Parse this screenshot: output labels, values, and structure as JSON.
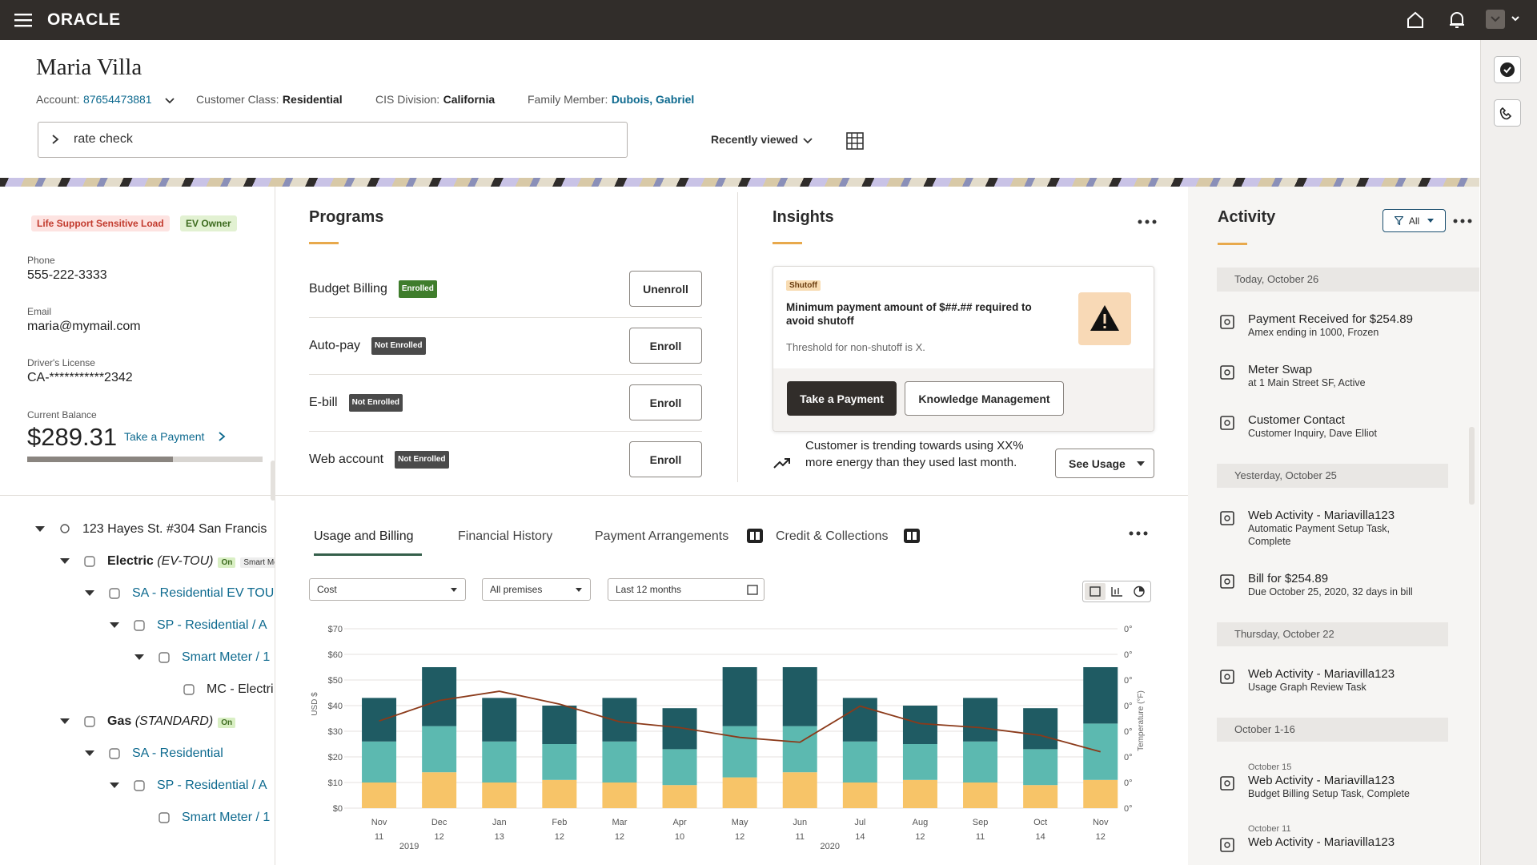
{
  "header": {
    "brand": "ORACLE"
  },
  "customer": {
    "name": "Maria Villa",
    "account_label": "Account:",
    "account": "87654473881",
    "class_label": "Customer Class:",
    "class": "Residential",
    "division_label": "CIS Division:",
    "division": "California",
    "family_label": "Family Member:",
    "family": "Dubois, Gabriel"
  },
  "search": {
    "query": "rate check",
    "recent": "Recently viewed"
  },
  "profile": {
    "badges": [
      "Life Support Sensitive Load",
      "EV Owner"
    ],
    "fields": [
      {
        "label": "Phone",
        "value": "555-222-3333"
      },
      {
        "label": "Email",
        "value": "maria@mymail.com"
      },
      {
        "label": "Driver's License",
        "value": "CA-***********2342"
      }
    ],
    "balance_label": "Current Balance",
    "balance": "$289.31",
    "pay_link": "Take a Payment"
  },
  "tree": {
    "label": "123 Hayes St. #304 San Francis",
    "children": [
      {
        "label": "Electric",
        "qualifier": "(EV-TOU)",
        "status": "On",
        "tag": "Smart Met",
        "children": [
          {
            "label": "SA - Residential EV TOU",
            "children": [
              {
                "label": "SP - Residential / A",
                "children": [
                  {
                    "label": "Smart Meter / 1",
                    "children": [
                      {
                        "label": "MC - Electri"
                      }
                    ]
                  }
                ]
              }
            ]
          }
        ]
      },
      {
        "label": "Gas",
        "qualifier": "(STANDARD)",
        "status": "On",
        "children": [
          {
            "label": "SA - Residential",
            "children": [
              {
                "label": "SP - Residential / A",
                "children": [
                  {
                    "label": "Smart Meter / 1"
                  }
                ]
              }
            ]
          }
        ]
      }
    ]
  },
  "programs": {
    "title": "Programs",
    "rows": [
      {
        "name": "Budget Billing",
        "status": "Enrolled",
        "action": "Unenroll"
      },
      {
        "name": "Auto-pay",
        "status": "Not Enrolled",
        "action": "Enroll"
      },
      {
        "name": "E-bill",
        "status": "Not Enrolled",
        "action": "Enroll"
      },
      {
        "name": "Web account",
        "status": "Not Enrolled",
        "action": "Enroll"
      }
    ]
  },
  "insights": {
    "title": "Insights",
    "tag": "Shutoff",
    "message": "Minimum payment amount of $##.## required to avoid shutoff",
    "note": "Threshold for non-shutoff is X.",
    "actions": [
      "Take a Payment",
      "Knowledge Management"
    ],
    "trend": "Customer is trending towards using XX% more energy than they used last month.",
    "trend_action": "See Usage"
  },
  "tabs": [
    "Usage and Billing",
    "Financial History",
    "Payment Arrangements",
    "Credit & Collections"
  ],
  "filters": [
    "Cost",
    "All premises",
    "Last 12 months"
  ],
  "chart_data": {
    "type": "bar",
    "stacked": true,
    "categories": [
      [
        "Nov",
        "11"
      ],
      [
        "Dec",
        "12"
      ],
      [
        "Jan",
        "13"
      ],
      [
        "Feb",
        "12"
      ],
      [
        "Mar",
        "12"
      ],
      [
        "Apr",
        "10"
      ],
      [
        "May",
        "12"
      ],
      [
        "Jun",
        "11"
      ],
      [
        "Jul",
        "14"
      ],
      [
        "Aug",
        "12"
      ],
      [
        "Sep",
        "11"
      ],
      [
        "Oct",
        "14"
      ],
      [
        "Nov",
        "12"
      ]
    ],
    "years": [
      "2019",
      "2020"
    ],
    "ylabel": "USD $",
    "y2label": "Temperature (°F)",
    "series": [
      {
        "color": "#f7c468",
        "values": [
          10,
          14,
          10,
          11,
          10,
          9,
          12,
          14,
          10,
          11,
          10,
          9,
          11
        ]
      },
      {
        "color": "#5cb9b0",
        "values": [
          16,
          18,
          16,
          14,
          16,
          14,
          20,
          18,
          16,
          14,
          16,
          14,
          22
        ]
      },
      {
        "color": "#1f5b63",
        "values": [
          17,
          23,
          17,
          15,
          17,
          16,
          23,
          23,
          17,
          15,
          17,
          16,
          22
        ]
      },
      {
        "type": "line",
        "axis": "y2",
        "color": "#8b3a1a",
        "values": [
          34,
          42,
          45.6,
          40.6,
          33.7,
          31.4,
          27.6,
          25.7,
          39.8,
          33,
          31.4,
          28.4,
          22
        ]
      }
    ],
    "ylim": [
      0,
      70
    ],
    "yticks": [
      {
        "value": 0,
        "label": "$0"
      },
      {
        "value": 10,
        "label": "$10"
      },
      {
        "value": 20,
        "label": "$20"
      },
      {
        "value": 30,
        "label": "$30"
      },
      {
        "value": 40,
        "label": "$40"
      },
      {
        "value": 50,
        "label": "$50"
      },
      {
        "value": 60,
        "label": "$60"
      },
      {
        "value": 70,
        "label": "$70"
      }
    ],
    "y2lim": [
      0,
      70
    ],
    "y2_labels": [
      "0°",
      "0°",
      "0°",
      "0°",
      "0°",
      "0°",
      "0°",
      "0°"
    ],
    "grid": true
  },
  "activity": {
    "title": "Activity",
    "filter": "All",
    "groups": [
      {
        "date": "Today, October 26",
        "items": [
          {
            "title": "Payment Received for $254.89",
            "detail": "Amex ending in 1000, Frozen"
          },
          {
            "title": "Meter Swap",
            "detail": "at 1 Main Street SF, Active"
          },
          {
            "title": "Customer Contact",
            "detail": "Customer Inquiry, Dave Elliot"
          }
        ]
      },
      {
        "date": "Yesterday, October 25",
        "items": [
          {
            "title": "Web Activity - Mariavilla123",
            "detail": "Automatic Payment Setup Task, Complete"
          },
          {
            "title": "Bill for $254.89",
            "detail": "Due October 25, 2020, 32 days in bill"
          }
        ]
      },
      {
        "date": "Thursday, October 22",
        "items": [
          {
            "title": "Web Activity - Mariavilla123",
            "detail": "Usage Graph Review Task"
          }
        ]
      },
      {
        "date": "October 1-16",
        "items": [
          {
            "date": "October 15",
            "title": "Web Activity - Mariavilla123",
            "detail": "Budget Billing Setup Task, Complete"
          },
          {
            "date": "October 11",
            "title": "Web Activity - Mariavilla123"
          }
        ]
      }
    ]
  }
}
